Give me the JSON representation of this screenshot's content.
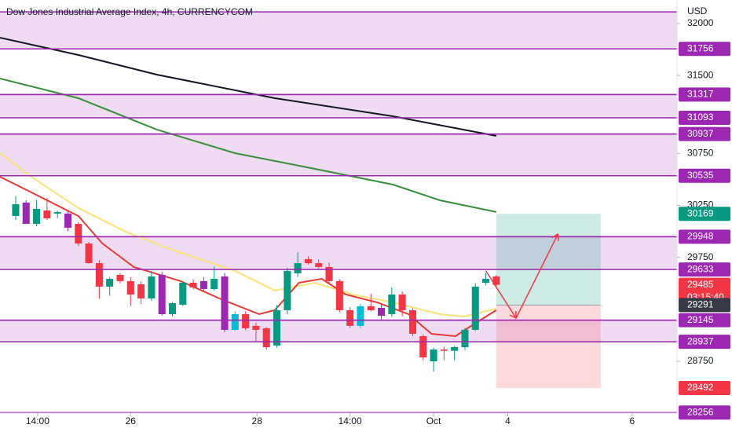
{
  "chart_data": {
    "type": "candlestick",
    "title": "Dow Jones Industrial Average Index, 4h, CURRENCYCOM",
    "currency_label": "USD",
    "countdown": "03:15:40",
    "x": [
      0,
      1,
      2,
      3,
      4,
      5,
      6,
      7,
      8,
      9,
      10,
      11,
      12,
      13,
      14,
      15,
      16,
      17,
      18,
      19,
      20,
      21,
      22,
      23,
      24,
      25,
      26,
      27,
      28,
      29,
      30,
      31,
      32,
      33,
      34,
      35,
      36,
      37,
      38,
      39,
      40,
      41,
      42,
      43,
      44,
      45,
      46
    ],
    "open": [
      30148,
      30277,
      30072,
      30201,
      30171,
      30171,
      30072,
      29883,
      29694,
      29468,
      29581,
      29521,
      29490,
      29354,
      29581,
      29203,
      29294,
      29505,
      29521,
      29445,
      29566,
      29052,
      29203,
      29090,
      29067,
      28901,
      29241,
      29596,
      29732,
      29694,
      29657,
      29521,
      29241,
      29090,
      29279,
      29263,
      29203,
      29392,
      29241,
      28991,
      28749,
      28863,
      28850,
      28885,
      29052,
      29505,
      29566
    ],
    "high": [
      30337,
      30300,
      30300,
      30322,
      30200,
      30190,
      30090,
      29900,
      29720,
      29560,
      29600,
      29560,
      29520,
      29620,
      29610,
      29320,
      29520,
      29540,
      29560,
      29660,
      29600,
      29230,
      29230,
      29120,
      29080,
      29290,
      29650,
      29800,
      29760,
      29730,
      29700,
      29540,
      29270,
      29300,
      29400,
      29300,
      29460,
      29420,
      29260,
      29010,
      28880,
      28890,
      28900,
      29070,
      29500,
      29600,
      29580
    ],
    "low": [
      30110,
      30072,
      30050,
      30110,
      30125,
      30000,
      29860,
      29690,
      29350,
      29380,
      29500,
      29280,
      29300,
      29330,
      29190,
      29180,
      29280,
      29440,
      29420,
      29430,
      29030,
      29040,
      29050,
      28940,
      28860,
      28880,
      29200,
      29560,
      29680,
      29640,
      29500,
      29220,
      29070,
      29070,
      29230,
      29150,
      29180,
      29180,
      28990,
      28760,
      28650,
      28760,
      28760,
      28860,
      29040,
      29480,
      29470
    ],
    "close": [
      30261,
      30072,
      30216,
      30125,
      30186,
      30035,
      29883,
      29694,
      29468,
      29543,
      29521,
      29392,
      29354,
      29566,
      29203,
      29309,
      29505,
      29460,
      29445,
      29543,
      29052,
      29203,
      29067,
      29052,
      28885,
      29241,
      29619,
      29694,
      29694,
      29657,
      29521,
      29241,
      29090,
      29279,
      29241,
      29188,
      29392,
      29241,
      29014,
      28787,
      28863,
      28850,
      28885,
      29052,
      29468,
      29543,
      29485
    ],
    "colors": [
      "#089981",
      "#9c27b0",
      "#089981",
      "#f23645",
      "#089981",
      "#9c27b0",
      "#f23645",
      "#f23645",
      "#f23645",
      "#089981",
      "#f23645",
      "#f23645",
      "#f23645",
      "#089981",
      "#9c27b0",
      "#089981",
      "#089981",
      "#f23645",
      "#9c27b0",
      "#089981",
      "#9c27b0",
      "#00bcd4",
      "#f23645",
      "#f23645",
      "#f23645",
      "#089981",
      "#089981",
      "#089981",
      "#f23645",
      "#f23645",
      "#f23645",
      "#f23645",
      "#f23645",
      "#00bcd4",
      "#f23645",
      "#9c27b0",
      "#089981",
      "#f23645",
      "#f23645",
      "#f23645",
      "#089981",
      "#f23645",
      "#089981",
      "#089981",
      "#089981",
      "#089981",
      "#f23645"
    ],
    "xlim": [
      -1.5,
      63.3
    ],
    "xticks": [
      {
        "value": 2.1,
        "label": "14:00"
      },
      {
        "value": 11,
        "label": "26"
      },
      {
        "value": 23.1,
        "label": "28"
      },
      {
        "value": 32,
        "label": "14:00"
      },
      {
        "value": 40,
        "label": "Oct"
      },
      {
        "value": 47.1,
        "label": "4"
      },
      {
        "value": 59,
        "label": "6"
      }
    ],
    "ylim": [
      28250,
      32227
    ],
    "yticks": [
      32000,
      31500,
      30750,
      30250,
      29750,
      28750
    ],
    "series": [
      {
        "color": "#131722",
        "x": [
          -1.5,
          6,
          13.5,
          24.8,
          36.1,
          46
        ],
        "values": [
          31864,
          31698,
          31509,
          31282,
          31108,
          30919
        ]
      },
      {
        "color": "#388e3c",
        "x": [
          -1.5,
          6,
          13.5,
          21,
          28.6,
          36.1,
          40.6,
          46
        ],
        "values": [
          31471,
          31282,
          30980,
          30753,
          30602,
          30450,
          30299,
          30186
        ]
      },
      {
        "color": "#fbe27a",
        "x": [
          -1.5,
          1.5,
          6,
          10.5,
          15,
          21,
          24.8,
          28.6,
          32.3,
          36.1,
          40.6,
          42.9,
          46
        ],
        "values": [
          30753,
          30526,
          30224,
          29997,
          29823,
          29619,
          29430,
          29505,
          29392,
          29316,
          29203,
          29180,
          29256
        ]
      },
      {
        "color": "#e53935",
        "x": [
          -1.5,
          1.5,
          6,
          8.3,
          11.3,
          15.8,
          19.5,
          23.3,
          24.8,
          27.1,
          29.3,
          31.6,
          34.6,
          37.6,
          39.8,
          42.1,
          43.6,
          46
        ],
        "values": [
          30526,
          30375,
          30148,
          29883,
          29657,
          29521,
          29354,
          29203,
          29241,
          29505,
          29543,
          29392,
          29316,
          29203,
          29014,
          28991,
          29090,
          29241
        ]
      }
    ],
    "levels": [
      {
        "value": 31756,
        "color": "#9c27b0"
      },
      {
        "value": 31317,
        "color": "#9c27b0"
      },
      {
        "value": 31093,
        "color": "#9c27b0"
      },
      {
        "value": 30937,
        "color": "#9c27b0"
      },
      {
        "value": 30535,
        "color": "#9c27b0"
      },
      {
        "value": 29948,
        "color": "#9c27b0"
      },
      {
        "value": 29633,
        "color": "#9c27b0"
      },
      {
        "value": 29145,
        "color": "#9c27b0"
      },
      {
        "value": 28937,
        "color": "#9c27b0"
      },
      {
        "value": 28256,
        "color": "#9c27b0"
      }
    ],
    "zones": [
      {
        "top": 32113,
        "bottom": 31756
      },
      {
        "top": 31317,
        "bottom": 31093
      },
      {
        "top": 30937,
        "bottom": 30535
      },
      {
        "top": 29948,
        "bottom": 29633
      },
      {
        "top": 29145,
        "bottom": 28937
      }
    ],
    "zone_color": "rgba(156,39,176,0.16)",
    "position": {
      "x_start": 46,
      "x_end": 56,
      "entry": 29291,
      "target": 30169,
      "stop": 28492,
      "target_color": "#089981",
      "entry_color": "#363a45",
      "stop_color": "#f23645"
    },
    "last_color": "#f23645",
    "projection": {
      "color": "#f23645",
      "x": [
        45,
        47.9,
        51.9
      ],
      "values": [
        29619,
        29165,
        29975
      ]
    }
  }
}
